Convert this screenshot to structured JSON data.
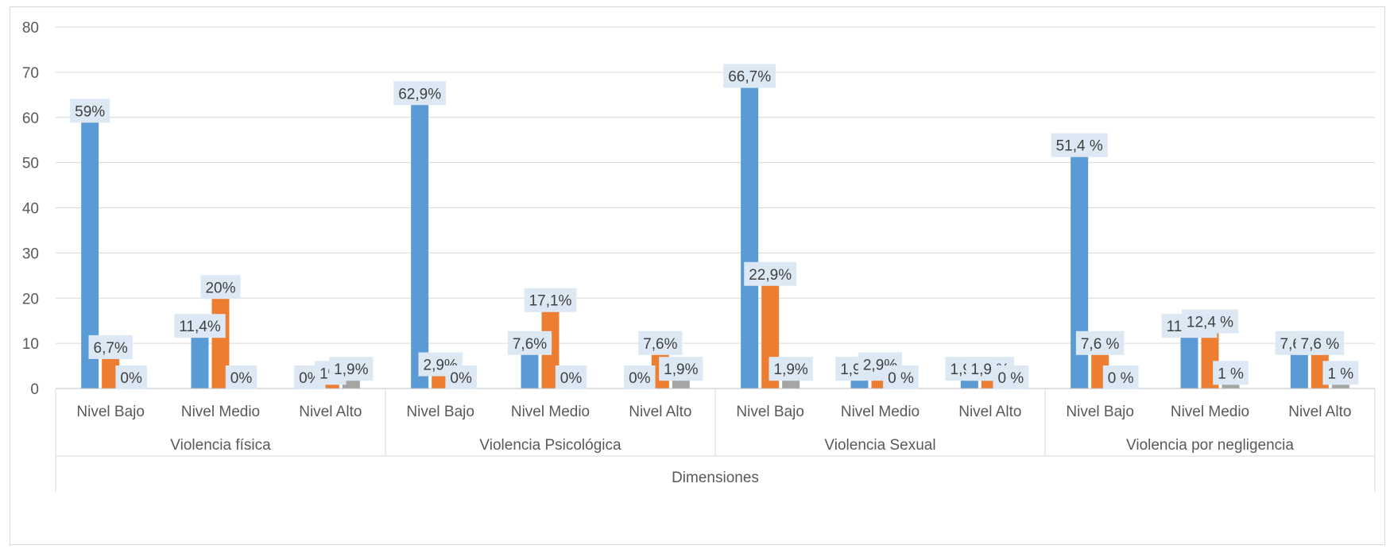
{
  "chart_data": {
    "type": "bar",
    "title": "",
    "xlabel": "Dimensiones",
    "ylabel": "",
    "ylim": [
      0,
      80
    ],
    "yticks": [
      "0",
      "10",
      "20",
      "30",
      "40",
      "50",
      "60",
      "70",
      "80"
    ],
    "grid": true,
    "legend": "none",
    "colors": [
      "#5b9bd5",
      "#ed7d31",
      "#a5a5a5"
    ],
    "groups": [
      {
        "label": "Violencia física",
        "categories": [
          {
            "label": "Nivel Bajo",
            "values": [
              59,
              6.7,
              0
            ],
            "labels": [
              "59%",
              "6,7%",
              "0%"
            ]
          },
          {
            "label": "Nivel Medio",
            "values": [
              11.4,
              20,
              0
            ],
            "labels": [
              "11,4%",
              "20%",
              "0%"
            ]
          },
          {
            "label": "Nivel Alto",
            "values": [
              0,
              1,
              1.9
            ],
            "labels": [
              "0%",
              "1%",
              "1,9%"
            ]
          }
        ]
      },
      {
        "label": "Violencia Psicológica",
        "categories": [
          {
            "label": "Nivel Bajo",
            "values": [
              62.9,
              2.9,
              0
            ],
            "labels": [
              "62,9%",
              "2,9%",
              "0%"
            ]
          },
          {
            "label": "Nivel Medio",
            "values": [
              7.6,
              17.1,
              0
            ],
            "labels": [
              "7,6%",
              "17,1%",
              "0%"
            ]
          },
          {
            "label": "Nivel Alto",
            "values": [
              0,
              7.6,
              1.9
            ],
            "labels": [
              "0%",
              "7,6%",
              "1,9%"
            ]
          }
        ]
      },
      {
        "label": "Violencia Sexual",
        "categories": [
          {
            "label": "Nivel Bajo",
            "values": [
              66.7,
              22.9,
              1.9
            ],
            "labels": [
              "66,7%",
              "22,9%",
              "1,9%"
            ]
          },
          {
            "label": "Nivel Medio",
            "values": [
              1.9,
              2.9,
              0
            ],
            "labels": [
              "1,9 %",
              "2,9%",
              "0 %"
            ]
          },
          {
            "label": "Nivel Alto",
            "values": [
              1.9,
              1.9,
              0
            ],
            "labels": [
              "1,9 %",
              "1,9 %",
              "0 %"
            ]
          }
        ]
      },
      {
        "label": "Violencia por negligencia",
        "categories": [
          {
            "label": "Nivel Bajo",
            "values": [
              51.4,
              7.6,
              0
            ],
            "labels": [
              "51,4 %",
              "7,6 %",
              "0 %"
            ]
          },
          {
            "label": "Nivel Medio",
            "values": [
              11.4,
              12.4,
              1
            ],
            "labels": [
              "11,4 %",
              "12,4 %",
              "1 %"
            ]
          },
          {
            "label": "Nivel Alto",
            "values": [
              7.6,
              7.6,
              1
            ],
            "labels": [
              "7,6 %",
              "7,6 %",
              "1 %"
            ]
          }
        ]
      }
    ]
  }
}
